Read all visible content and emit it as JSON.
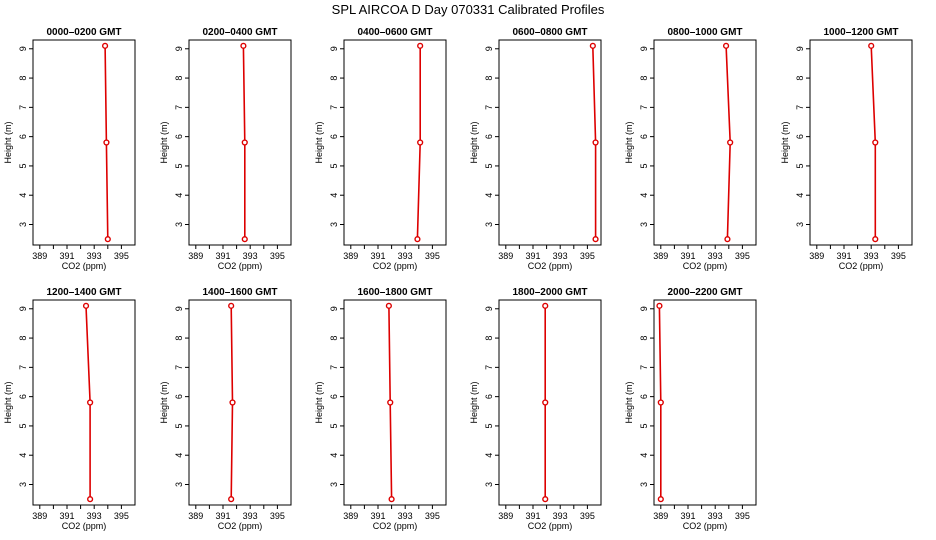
{
  "page": {
    "title": "SPL AIRCOA D  Day 070331  Calibrated Profiles"
  },
  "chart_data": {
    "type": "line",
    "title": "SPL AIRCOA D  Day 070331  Calibrated Profiles",
    "xlabel": "CO2 (ppm)",
    "ylabel": "Height (m)",
    "xlim": [
      388.5,
      396.0
    ],
    "ylim": [
      2.3,
      9.3
    ],
    "x_ticks": [
      389,
      390,
      391,
      392,
      393,
      394,
      395
    ],
    "x_tick_labels": [
      "389",
      "",
      "391",
      "",
      "393",
      "",
      "395"
    ],
    "y_ticks": [
      3,
      4,
      5,
      6,
      7,
      8,
      9
    ],
    "y_tick_labels": [
      "3",
      "4",
      "5",
      "6",
      "7",
      "8",
      "9"
    ],
    "grid": false,
    "series_color": "#dd0000",
    "heights": [
      9.1,
      5.8,
      2.5
    ],
    "panels": [
      {
        "title": "0000–0200 GMT",
        "co2": [
          393.8,
          393.9,
          394.0
        ]
      },
      {
        "title": "0200–0400 GMT",
        "co2": [
          392.5,
          392.6,
          392.6
        ]
      },
      {
        "title": "0400–0600 GMT",
        "co2": [
          394.1,
          394.1,
          393.9
        ]
      },
      {
        "title": "0600–0800 GMT",
        "co2": [
          395.4,
          395.6,
          395.6
        ]
      },
      {
        "title": "0800–1000 GMT",
        "co2": [
          393.8,
          394.1,
          393.9
        ]
      },
      {
        "title": "1000–1200 GMT",
        "co2": [
          393.0,
          393.3,
          393.3
        ]
      },
      {
        "title": "1200–1400 GMT",
        "co2": [
          392.4,
          392.7,
          392.7
        ]
      },
      {
        "title": "1400–1600 GMT",
        "co2": [
          391.6,
          391.7,
          391.6
        ]
      },
      {
        "title": "1600–1800 GMT",
        "co2": [
          391.8,
          391.9,
          392.0
        ]
      },
      {
        "title": "1800–2000 GMT",
        "co2": [
          391.9,
          391.9,
          391.9
        ]
      },
      {
        "title": "2000–2200 GMT",
        "co2": [
          388.9,
          389.0,
          389.0
        ]
      }
    ]
  }
}
